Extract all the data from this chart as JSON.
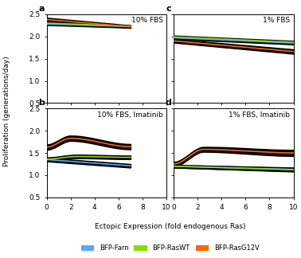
{
  "title_a": "10% FBS",
  "title_b": "10% FBS, Imatinib",
  "title_c": "1% FBS",
  "title_d": "1% FBS, Imatinib",
  "xlabel": "Ectopic Expression (fold endogenous Ras)",
  "ylabel": "Proliferation (generations/day)",
  "ylim": [
    0.5,
    2.5
  ],
  "xlim": [
    0,
    10
  ],
  "yticks": [
    0.5,
    1.0,
    1.5,
    2.0,
    2.5
  ],
  "xticks": [
    0,
    2,
    4,
    6,
    8,
    10
  ],
  "color_farn": "#55aaff",
  "color_rasWT": "#88dd00",
  "color_rasG12V": "#ff6600",
  "panel_a": {
    "farn_y0": 2.28,
    "farn_y1": 2.22,
    "farn_err0": 0.025,
    "farn_err1": 0.025,
    "rasWT_y0": 2.3,
    "rasWT_y1": 2.23,
    "rasWT_err0": 0.025,
    "rasWT_err1": 0.02,
    "rasG12V_y0": 2.38,
    "rasG12V_y1": 2.22,
    "rasG12V_err0": 0.04,
    "rasG12V_err1": 0.03,
    "x_end": 7.0
  },
  "panel_b": {
    "farn_y0": 1.35,
    "farn_y1": 1.21,
    "farn_err0": 0.04,
    "farn_err1": 0.04,
    "rasWT_y0": 1.36,
    "rasWT_ypeak": 1.42,
    "rasWT_xpeak": 2.5,
    "rasWT_y1": 1.4,
    "rasWT_err0": 0.04,
    "rasWT_err1": 0.04,
    "rasG12V_y0": 1.63,
    "rasG12V_ypeak": 1.83,
    "rasG12V_xpeak": 2.0,
    "rasG12V_y1": 1.64,
    "rasG12V_err0": 0.06,
    "rasG12V_err1": 0.06,
    "x_end": 7.0
  },
  "panel_c": {
    "farn_y0": 1.97,
    "farn_y1": 1.85,
    "farn_err0": 0.03,
    "farn_err1": 0.03,
    "rasWT_y0": 1.99,
    "rasWT_y1": 1.87,
    "rasWT_err0": 0.03,
    "rasWT_err1": 0.03,
    "rasG12V_y0": 1.9,
    "rasG12V_y1": 1.66,
    "rasG12V_err0": 0.04,
    "rasG12V_err1": 0.05,
    "x_end": 10.0
  },
  "panel_d": {
    "farn_y0": 1.2,
    "farn_y1": 1.13,
    "farn_err0": 0.03,
    "farn_err1": 0.04,
    "rasWT_y0": 1.2,
    "rasWT_y1": 1.12,
    "rasWT_err0": 0.03,
    "rasWT_err1": 0.04,
    "rasG12V_y0": 1.25,
    "rasG12V_ypeak": 1.58,
    "rasG12V_xpeak": 2.5,
    "rasG12V_y1": 1.5,
    "rasG12V_err0": 0.05,
    "rasG12V_err1": 0.07,
    "x_end": 10.0
  },
  "legend_labels": [
    "BFP-Farn",
    "BFP-RasWT",
    "BFP-RasG12V"
  ],
  "legend_colors": [
    "#55aaff",
    "#88dd00",
    "#ff6600"
  ]
}
